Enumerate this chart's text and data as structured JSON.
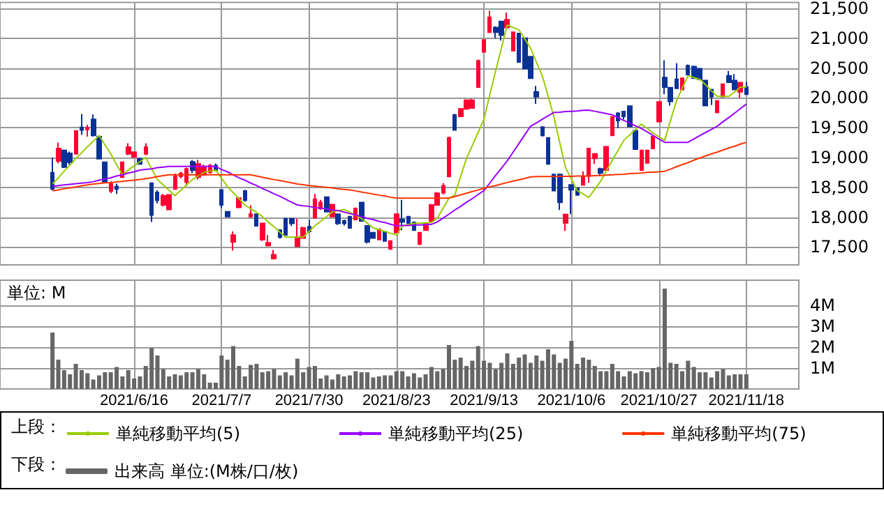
{
  "chart_data": [
    {
      "type": "candlestick",
      "legend_title": "上段：",
      "legend": "bottom",
      "grid": true,
      "tick_labels": "y",
      "categories": [
        null,
        null,
        null,
        null,
        null,
        null,
        null,
        null,
        null,
        null,
        null,
        null,
        null,
        null,
        "2021/6/16",
        null,
        null,
        null,
        null,
        null,
        null,
        null,
        null,
        null,
        null,
        null,
        null,
        null,
        null,
        "2021/7/7",
        null,
        null,
        null,
        null,
        null,
        null,
        null,
        null,
        null,
        null,
        null,
        null,
        null,
        null,
        "2021/7/30",
        null,
        null,
        null,
        null,
        null,
        null,
        null,
        null,
        null,
        null,
        null,
        null,
        null,
        null,
        "2021/8/23",
        null,
        null,
        null,
        null,
        null,
        null,
        null,
        null,
        null,
        null,
        null,
        null,
        null,
        null,
        "2021/9/13",
        null,
        null,
        null,
        null,
        null,
        null,
        null,
        null,
        null,
        null,
        null,
        null,
        null,
        null,
        "2021/10/6",
        null,
        null,
        null,
        null,
        null,
        null,
        null,
        null,
        null,
        null,
        null,
        null,
        null,
        null,
        "2021/10/27",
        null,
        null,
        null,
        null,
        null,
        null,
        null,
        null,
        null,
        null,
        null,
        null,
        null,
        null,
        "2021/11/18"
      ],
      "ylim": [
        17200,
        21600
      ],
      "yticks": [
        {
          "value": 17500,
          "label": "17,500"
        },
        {
          "value": 18000,
          "label": "18,000"
        },
        {
          "value": 18500,
          "label": "18,500"
        },
        {
          "value": 19000,
          "label": "19,000"
        },
        {
          "value": 19500,
          "label": "19,500"
        },
        {
          "value": 20000,
          "label": "20,000"
        },
        {
          "value": 20500,
          "label": "20,500"
        },
        {
          "value": 21000,
          "label": "21,000"
        },
        {
          "value": 21500,
          "label": "21,500"
        }
      ],
      "ohlc": [
        [
          18745,
          19000,
          18450,
          18475
        ],
        [
          18940,
          19250,
          18900,
          19150
        ],
        [
          19120,
          19135,
          18825,
          18840
        ],
        [
          19070,
          19100,
          18880,
          18920
        ],
        [
          19060,
          19450,
          19050,
          19445
        ],
        [
          19505,
          19730,
          19380,
          19460
        ],
        [
          19470,
          19550,
          19350,
          19500
        ],
        [
          19640,
          19720,
          19350,
          19370
        ],
        [
          19350,
          19360,
          18970,
          18980
        ],
        [
          18920,
          18930,
          18580,
          18590
        ],
        [
          18440,
          18600,
          18400,
          18555
        ],
        [
          18515,
          18560,
          18390,
          18470
        ],
        [
          18670,
          18930,
          18660,
          18920
        ],
        [
          19060,
          19240,
          19040,
          19175
        ],
        [
          19010,
          19100,
          18990,
          19090
        ],
        [
          18980,
          19000,
          18880,
          18890
        ],
        [
          19060,
          19240,
          19040,
          19175
        ],
        [
          18570,
          18580,
          17920,
          18035
        ],
        [
          18415,
          18450,
          18230,
          18285
        ],
        [
          18205,
          18390,
          18180,
          18360
        ],
        [
          18130,
          18380,
          18120,
          18375
        ],
        [
          18475,
          18730,
          18460,
          18685
        ],
        [
          18685,
          18760,
          18650,
          18730
        ],
        [
          18590,
          18830,
          18520,
          18810
        ],
        [
          18925,
          18960,
          18740,
          18785
        ],
        [
          18670,
          18960,
          18630,
          18890
        ],
        [
          18710,
          18880,
          18690,
          18850
        ],
        [
          18750,
          18890,
          18730,
          18865
        ],
        [
          18865,
          18900,
          18770,
          18785
        ],
        [
          18455,
          18460,
          18150,
          18205
        ],
        [
          18090,
          18100,
          18000,
          18010
        ],
        [
          17585,
          17760,
          17440,
          17700
        ],
        [
          18165,
          18330,
          18150,
          18320
        ],
        [
          18440,
          18460,
          18260,
          18285
        ],
        [
          18010,
          18200,
          17990,
          18050
        ],
        [
          18050,
          18060,
          17850,
          17855
        ],
        [
          17625,
          17900,
          17600,
          17895
        ],
        [
          17525,
          17700,
          17510,
          17570
        ],
        [
          17305,
          17450,
          17290,
          17370
        ],
        [
          17780,
          17800,
          17640,
          17665
        ],
        [
          17975,
          17990,
          17690,
          17700
        ],
        [
          17975,
          17990,
          17850,
          17895
        ],
        [
          17510,
          17970,
          17500,
          17665
        ],
        [
          17650,
          17840,
          17640,
          17820
        ],
        [
          17840,
          17950,
          17740,
          17765
        ],
        [
          17990,
          18390,
          17980,
          18300
        ],
        [
          18145,
          18290,
          18120,
          18245
        ],
        [
          18335,
          18340,
          18080,
          18090
        ],
        [
          18010,
          18220,
          18000,
          18210
        ],
        [
          18050,
          18060,
          17870,
          17895
        ],
        [
          17935,
          17960,
          17860,
          17895
        ],
        [
          18010,
          18020,
          17810,
          17820
        ],
        [
          17960,
          18160,
          17950,
          18145
        ],
        [
          18245,
          18250,
          17930,
          17935
        ],
        [
          17855,
          17860,
          17560,
          17585
        ],
        [
          17740,
          17750,
          17640,
          17650
        ],
        [
          17625,
          17810,
          17620,
          17795
        ],
        [
          17755,
          17760,
          17590,
          17600
        ],
        [
          17470,
          17610,
          17450,
          17600
        ],
        [
          17740,
          18060,
          17730,
          18050
        ],
        [
          17960,
          18290,
          17780,
          17920
        ],
        [
          18010,
          18020,
          17860,
          17895
        ],
        [
          17910,
          17930,
          17770,
          17780
        ],
        [
          17550,
          17750,
          17530,
          17740
        ],
        [
          17780,
          17900,
          17770,
          17895
        ],
        [
          17935,
          18220,
          17920,
          18205
        ],
        [
          18205,
          18420,
          18190,
          18400
        ],
        [
          18410,
          18570,
          18380,
          18525
        ],
        [
          18680,
          19350,
          18670,
          19330
        ],
        [
          19715,
          19730,
          19450,
          19460
        ],
        [
          19690,
          19830,
          19680,
          19815
        ],
        [
          19815,
          19970,
          19800,
          19960
        ],
        [
          19830,
          19980,
          19820,
          19960
        ],
        [
          20180,
          20640,
          20170,
          20620
        ],
        [
          20770,
          20980,
          20760,
          20970
        ],
        [
          21100,
          21460,
          21090,
          21350
        ],
        [
          21180,
          21200,
          21000,
          21100
        ],
        [
          21280,
          21290,
          20960,
          21050
        ],
        [
          21180,
          21430,
          21170,
          21310
        ],
        [
          20790,
          21110,
          20780,
          21100
        ],
        [
          21080,
          21090,
          20590,
          20600
        ],
        [
          21000,
          21010,
          20480,
          20490
        ],
        [
          20690,
          20700,
          20320,
          20330
        ],
        [
          20100,
          20200,
          19900,
          20020
        ],
        [
          19510,
          19520,
          19350,
          19370
        ],
        [
          19330,
          19340,
          18880,
          18890
        ],
        [
          18715,
          18720,
          18440,
          18445
        ],
        [
          18715,
          18730,
          18120,
          18250
        ],
        [
          17905,
          18060,
          17770,
          18045
        ],
        [
          18540,
          18550,
          18050,
          18460
        ],
        [
          18485,
          18500,
          18360,
          18370
        ],
        [
          18540,
          18770,
          18530,
          18680
        ],
        [
          18690,
          19160,
          18580,
          19150
        ],
        [
          18985,
          19070,
          18890,
          19060
        ],
        [
          18810,
          18830,
          18700,
          18740
        ],
        [
          18790,
          19190,
          18780,
          19180
        ],
        [
          19370,
          19690,
          19360,
          19680
        ],
        [
          19740,
          19760,
          19490,
          19620
        ],
        [
          19770,
          19780,
          19640,
          19690
        ],
        [
          19860,
          19870,
          19510,
          19520
        ],
        [
          19450,
          19460,
          19130,
          19140
        ],
        [
          18790,
          19130,
          18780,
          19120
        ],
        [
          18910,
          19130,
          18900,
          19120
        ],
        [
          19150,
          19360,
          19140,
          19350
        ],
        [
          19600,
          19940,
          19590,
          19930
        ],
        [
          20340,
          20630,
          20060,
          20180
        ],
        [
          20170,
          20180,
          19870,
          19940
        ],
        [
          20310,
          20580,
          20150,
          20160
        ],
        [
          20140,
          20340,
          20130,
          20330
        ],
        [
          20540,
          20560,
          20380,
          20390
        ],
        [
          20525,
          20540,
          20320,
          20330
        ],
        [
          20490,
          20500,
          20300,
          20310
        ],
        [
          20290,
          20300,
          19860,
          19870
        ],
        [
          20140,
          20150,
          19880,
          20020
        ],
        [
          19755,
          19960,
          19740,
          19950
        ],
        [
          20020,
          20240,
          20010,
          20230
        ],
        [
          20370,
          20450,
          20250,
          20260
        ],
        [
          20290,
          20400,
          20130,
          20140
        ],
        [
          20100,
          20260,
          20000,
          20255
        ],
        [
          20180,
          20270,
          20050,
          20060
        ]
      ],
      "series": [
        {
          "type": "line",
          "name": "単純移動平均(5)",
          "color": "#99cc00",
          "values": [
            18555,
            18660,
            18770,
            18870,
            18980,
            19080,
            19180,
            19270,
            19370,
            19210,
            19060,
            18880,
            18710,
            18790,
            18860,
            18930,
            19000,
            18810,
            18630,
            18540,
            18450,
            18360,
            18450,
            18540,
            18630,
            18690,
            18750,
            18770,
            18790,
            18650,
            18515,
            18410,
            18310,
            18205,
            18140,
            18080,
            18010,
            17920,
            17840,
            17750,
            17665,
            17665,
            17665,
            17665,
            17760,
            17855,
            17930,
            18010,
            18090,
            18110,
            18130,
            18080,
            18030,
            17975,
            17900,
            17820,
            17790,
            17760,
            17730,
            17700,
            17855,
            17875,
            17895,
            17900,
            17905,
            17910,
            17985,
            18150,
            18320,
            18370,
            18680,
            18985,
            19200,
            19420,
            19640,
            20050,
            20450,
            20840,
            21220,
            21180,
            21140,
            20990,
            20830,
            20600,
            20370,
            20030,
            19680,
            19250,
            18830,
            18640,
            18445,
            18390,
            18330,
            18470,
            18600,
            18780,
            18950,
            19120,
            19290,
            19380,
            19470,
            19560,
            19490,
            19410,
            19350,
            19290,
            19620,
            19945,
            20160,
            20370,
            20340,
            20310,
            20220,
            20120,
            20025,
            20025,
            20025,
            20100,
            20180,
            20180
          ]
        },
        {
          "type": "line",
          "name": "単純移動平均(25)",
          "color": "#9900ff",
          "values": [
            18515,
            18530,
            18540,
            18550,
            18560,
            18570,
            18580,
            18595,
            18620,
            18640,
            18660,
            18690,
            18710,
            18740,
            18760,
            18790,
            18800,
            18810,
            18830,
            18840,
            18850,
            18850,
            18850,
            18850,
            18850,
            18850,
            18850,
            18850,
            18850,
            18800,
            18760,
            18710,
            18660,
            18620,
            18570,
            18530,
            18480,
            18440,
            18390,
            18350,
            18300,
            18250,
            18205,
            18190,
            18180,
            18160,
            18150,
            18140,
            18120,
            18110,
            18085,
            18060,
            18035,
            18010,
            17980,
            17960,
            17930,
            17910,
            17880,
            17855,
            17860,
            17860,
            17870,
            17870,
            17875,
            17880,
            17920,
            17985,
            18050,
            18120,
            18180,
            18250,
            18310,
            18380,
            18445,
            18570,
            18700,
            18820,
            18945,
            19090,
            19235,
            19380,
            19525,
            19580,
            19640,
            19700,
            19755,
            19760,
            19770,
            19775,
            19780,
            19790,
            19795,
            19775,
            19755,
            19735,
            19715,
            19670,
            19620,
            19580,
            19530,
            19485,
            19430,
            19370,
            19310,
            19255,
            19255,
            19255,
            19255,
            19255,
            19310,
            19365,
            19420,
            19470,
            19525,
            19600,
            19670,
            19745,
            19820,
            19895
          ]
        },
        {
          "type": "line",
          "name": "単純移動平均(75)",
          "color": "#ff3300",
          "values": [
            18440,
            18455,
            18475,
            18490,
            18505,
            18525,
            18540,
            18555,
            18565,
            18575,
            18580,
            18590,
            18600,
            18610,
            18620,
            18630,
            18645,
            18660,
            18680,
            18695,
            18710,
            18710,
            18710,
            18710,
            18710,
            18710,
            18710,
            18710,
            18710,
            18710,
            18710,
            18710,
            18710,
            18710,
            18710,
            18690,
            18670,
            18650,
            18630,
            18615,
            18595,
            18575,
            18555,
            18545,
            18530,
            18520,
            18510,
            18500,
            18490,
            18475,
            18465,
            18455,
            18440,
            18420,
            18405,
            18385,
            18370,
            18355,
            18335,
            18320,
            18320,
            18320,
            18320,
            18320,
            18320,
            18320,
            18320,
            18320,
            18320,
            18345,
            18375,
            18400,
            18430,
            18455,
            18485,
            18510,
            18530,
            18555,
            18580,
            18605,
            18625,
            18650,
            18675,
            18680,
            18680,
            18680,
            18680,
            18685,
            18685,
            18685,
            18690,
            18690,
            18690,
            18695,
            18700,
            18705,
            18710,
            18715,
            18720,
            18730,
            18735,
            18740,
            18750,
            18755,
            18760,
            18770,
            18805,
            18845,
            18880,
            18915,
            18955,
            18990,
            19025,
            19060,
            19090,
            19125,
            19160,
            19190,
            19225,
            19255
          ]
        }
      ]
    },
    {
      "type": "bar",
      "legend_title": "下段：",
      "legend": "bottom",
      "grid": true,
      "ylabel": "単位: M",
      "categories": [
        null,
        null,
        null,
        null,
        null,
        null,
        null,
        null,
        null,
        null,
        null,
        null,
        null,
        null,
        "2021/6/16",
        null,
        null,
        null,
        null,
        null,
        null,
        null,
        null,
        null,
        null,
        null,
        null,
        null,
        null,
        "2021/7/7",
        null,
        null,
        null,
        null,
        null,
        null,
        null,
        null,
        null,
        null,
        null,
        null,
        null,
        null,
        "2021/7/30",
        null,
        null,
        null,
        null,
        null,
        null,
        null,
        null,
        null,
        null,
        null,
        null,
        null,
        null,
        "2021/8/23",
        null,
        null,
        null,
        null,
        null,
        null,
        null,
        null,
        null,
        null,
        null,
        null,
        null,
        null,
        "2021/9/13",
        null,
        null,
        null,
        null,
        null,
        null,
        null,
        null,
        null,
        null,
        null,
        null,
        null,
        null,
        "2021/10/6",
        null,
        null,
        null,
        null,
        null,
        null,
        null,
        null,
        null,
        null,
        null,
        null,
        null,
        null,
        "2021/10/27",
        null,
        null,
        null,
        null,
        null,
        null,
        null,
        null,
        null,
        null,
        null,
        null,
        null,
        null,
        "2021/11/18"
      ],
      "ylim": [
        0,
        5.2
      ],
      "yticks": [
        {
          "value": 1,
          "label": "1M"
        },
        {
          "value": 2,
          "label": "2M"
        },
        {
          "value": 3,
          "label": "3M"
        },
        {
          "value": 4,
          "label": "4M"
        }
      ],
      "series": [
        {
          "name": "出来高 単位:(M株/口/枚)",
          "color": "#666666",
          "values": [
            2.7,
            1.4,
            0.9,
            0.7,
            1.2,
            0.9,
            0.75,
            0.45,
            0.65,
            0.8,
            0.8,
            1.05,
            0.6,
            0.9,
            0.5,
            0.6,
            1.1,
            1.95,
            1.6,
            0.95,
            0.6,
            0.7,
            0.65,
            0.8,
            0.8,
            0.95,
            0.7,
            0.3,
            0.3,
            1.6,
            1.4,
            2.05,
            1.1,
            0.6,
            1.15,
            1.2,
            0.8,
            0.85,
            0.95,
            0.65,
            0.8,
            0.65,
            1.45,
            0.8,
            1.05,
            1.1,
            0.5,
            0.65,
            0.45,
            0.7,
            0.6,
            0.65,
            0.85,
            0.8,
            0.8,
            0.55,
            0.6,
            0.65,
            0.65,
            0.85,
            0.85,
            0.6,
            0.75,
            0.55,
            0.7,
            1.05,
            0.85,
            0.95,
            2.1,
            1.4,
            1.5,
            1.1,
            1.35,
            2.05,
            1.35,
            1.25,
            0.95,
            1.25,
            1.7,
            1.2,
            1.5,
            1.65,
            1.25,
            1.6,
            1.35,
            1.9,
            1.65,
            1.25,
            1.45,
            2.3,
            1.2,
            1.5,
            1.4,
            1.1,
            0.85,
            0.85,
            1.2,
            0.85,
            0.6,
            0.85,
            0.75,
            0.85,
            0.8,
            1.0,
            1.05,
            4.8,
            1.25,
            1.2,
            0.85,
            1.35,
            1.05,
            0.8,
            0.8,
            0.55,
            0.85,
            0.95,
            0.65,
            0.7,
            0.7,
            0.7
          ]
        }
      ]
    }
  ]
}
